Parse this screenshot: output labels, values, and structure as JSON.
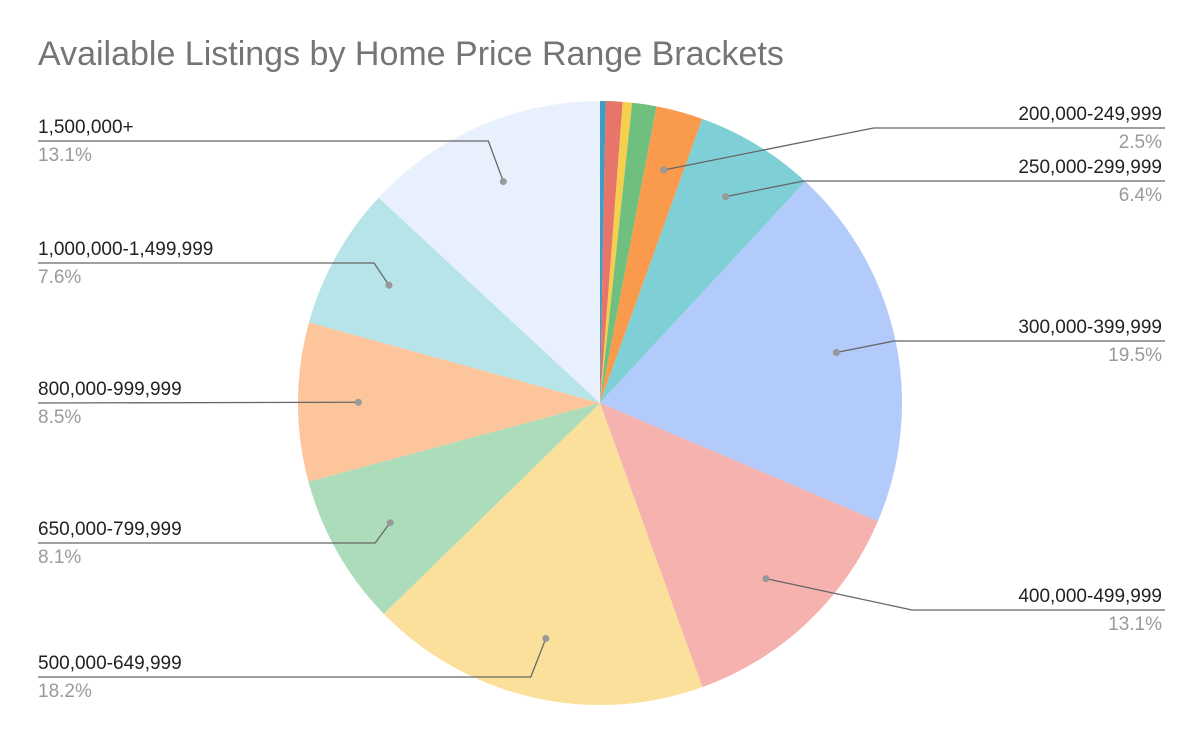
{
  "chart_data": {
    "type": "pie",
    "title": "Available Listings by Home Price Range Brackets",
    "categories": [
      null,
      null,
      null,
      null,
      "200,000-249,999",
      "250,000-299,999",
      "300,000-399,999",
      "400,000-499,999",
      "500,000-649,999",
      "650,000-799,999",
      "800,000-999,999",
      "1,000,000-1,499,999",
      "1,500,000+"
    ],
    "values": [
      0.3,
      0.9,
      0.5,
      1.3,
      2.5,
      6.4,
      19.5,
      13.1,
      18.2,
      8.1,
      8.5,
      7.6,
      13.1
    ],
    "value_labels": [
      null,
      null,
      null,
      null,
      "2.5%",
      "6.4%",
      "19.5%",
      "13.1%",
      "18.2%",
      "8.1%",
      "8.5%",
      "7.6%",
      "13.1%"
    ],
    "colors": [
      "#3f9cc4",
      "#e8756a",
      "#f6d04d",
      "#6fc07e",
      "#f99a4c",
      "#7ed0d6",
      "#b3cbfa",
      "#f5b2ae",
      "#fae09a",
      "#acdcb9",
      "#fcc59c",
      "#b7e4e9",
      "#e9f0fd"
    ]
  }
}
